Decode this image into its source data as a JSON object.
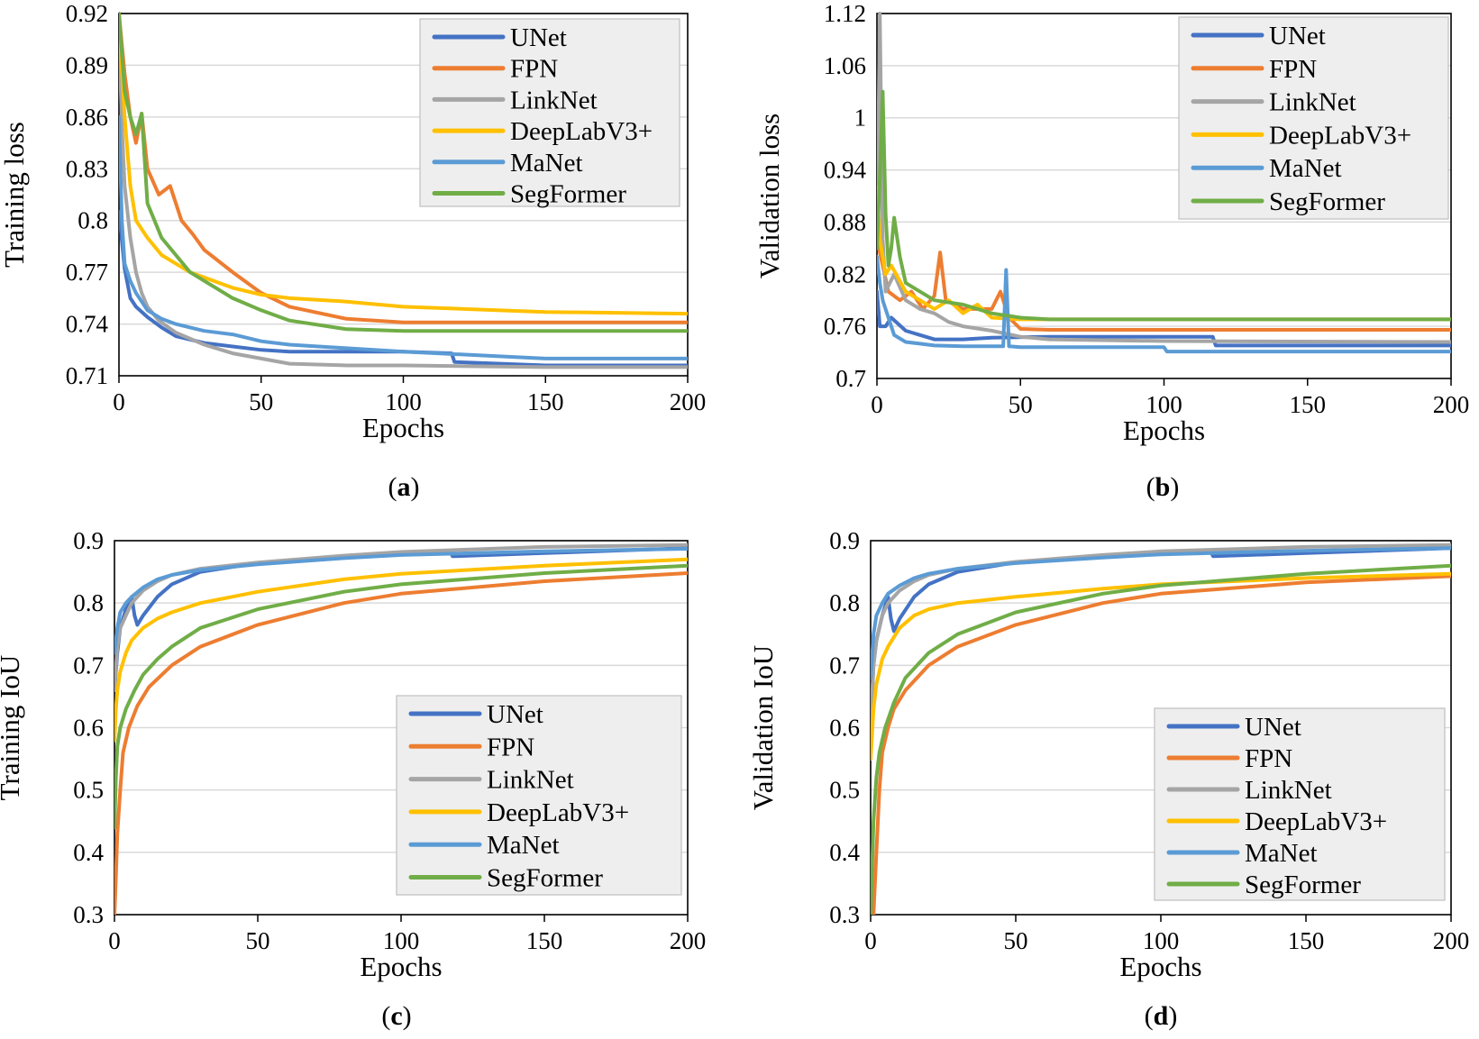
{
  "colors": {
    "UNet": "#4472C4",
    "FPN": "#ED7D31",
    "LinkNet": "#A5A5A5",
    "DeepLabV3+": "#FFC000",
    "MaNet": "#5B9BD5",
    "SegFormer": "#70AD47"
  },
  "chart_data": [
    {
      "id": "a",
      "type": "line",
      "caption": {
        "prefix": "(",
        "letter": "a",
        "suffix": ")"
      },
      "xlabel": "Epochs",
      "ylabel": "Training loss",
      "xlim": [
        0,
        200
      ],
      "ylim": [
        0.71,
        0.92
      ],
      "xticks": [
        "0",
        "50",
        "100",
        "150",
        "200"
      ],
      "yticks": [
        "0.71",
        "0.74",
        "0.77",
        "0.8",
        "0.83",
        "0.86",
        "0.89",
        "0.92"
      ],
      "legend": [
        "UNet",
        "FPN",
        "LinkNet",
        "DeepLabV3+",
        "MaNet",
        "SegFormer"
      ],
      "series": [
        {
          "name": "UNet",
          "x": [
            0,
            2,
            4,
            6,
            10,
            15,
            20,
            30,
            40,
            50,
            60,
            80,
            100,
            117,
            118,
            150,
            200
          ],
          "values": [
            0.805,
            0.772,
            0.755,
            0.75,
            0.744,
            0.738,
            0.733,
            0.729,
            0.727,
            0.725,
            0.724,
            0.724,
            0.724,
            0.723,
            0.718,
            0.716,
            0.716
          ]
        },
        {
          "name": "FPN",
          "x": [
            0,
            2,
            4,
            6,
            8,
            10,
            14,
            18,
            22,
            26,
            30,
            40,
            50,
            60,
            80,
            100,
            150,
            200
          ],
          "values": [
            0.92,
            0.885,
            0.86,
            0.845,
            0.862,
            0.83,
            0.815,
            0.82,
            0.8,
            0.792,
            0.783,
            0.77,
            0.758,
            0.75,
            0.743,
            0.741,
            0.741,
            0.741
          ]
        },
        {
          "name": "LinkNet",
          "x": [
            0,
            1,
            2,
            4,
            6,
            8,
            10,
            14,
            20,
            30,
            40,
            50,
            60,
            80,
            100,
            150,
            200
          ],
          "values": [
            0.91,
            0.855,
            0.82,
            0.79,
            0.77,
            0.758,
            0.75,
            0.742,
            0.735,
            0.728,
            0.723,
            0.72,
            0.717,
            0.716,
            0.716,
            0.715,
            0.715
          ]
        },
        {
          "name": "DeepLabV3+",
          "x": [
            0,
            2,
            4,
            6,
            8,
            10,
            15,
            20,
            25,
            30,
            40,
            50,
            60,
            80,
            100,
            150,
            200
          ],
          "values": [
            0.915,
            0.86,
            0.82,
            0.8,
            0.795,
            0.79,
            0.78,
            0.775,
            0.77,
            0.767,
            0.761,
            0.757,
            0.755,
            0.753,
            0.75,
            0.747,
            0.746
          ]
        },
        {
          "name": "MaNet",
          "x": [
            0,
            1,
            2,
            4,
            6,
            8,
            10,
            15,
            20,
            25,
            30,
            40,
            50,
            60,
            80,
            100,
            150,
            200
          ],
          "values": [
            0.86,
            0.8,
            0.775,
            0.765,
            0.758,
            0.753,
            0.748,
            0.743,
            0.74,
            0.738,
            0.736,
            0.734,
            0.73,
            0.728,
            0.726,
            0.724,
            0.72,
            0.72
          ]
        },
        {
          "name": "SegFormer",
          "x": [
            0,
            2,
            4,
            6,
            8,
            10,
            15,
            20,
            25,
            30,
            40,
            50,
            60,
            80,
            100,
            150,
            200
          ],
          "values": [
            0.92,
            0.875,
            0.86,
            0.85,
            0.862,
            0.81,
            0.79,
            0.78,
            0.77,
            0.765,
            0.755,
            0.748,
            0.742,
            0.737,
            0.736,
            0.736,
            0.736
          ]
        }
      ]
    },
    {
      "id": "b",
      "type": "line",
      "caption": {
        "prefix": "(",
        "letter": "b",
        "suffix": ")"
      },
      "xlabel": "Epochs",
      "ylabel": "Validation loss",
      "xlim": [
        0,
        200
      ],
      "ylim": [
        0.7,
        1.12
      ],
      "xticks": [
        "0",
        "50",
        "100",
        "150",
        "200"
      ],
      "yticks": [
        "0.7",
        "0.76",
        "0.82",
        "0.88",
        "0.94",
        "1",
        "1.06",
        "1.12"
      ],
      "legend": [
        "UNet",
        "FPN",
        "LinkNet",
        "DeepLabV3+",
        "MaNet",
        "SegFormer"
      ],
      "series": [
        {
          "name": "UNet",
          "x": [
            0,
            1,
            3,
            5,
            10,
            15,
            20,
            30,
            40,
            60,
            80,
            100,
            117,
            118,
            150,
            200
          ],
          "values": [
            0.8,
            0.76,
            0.76,
            0.77,
            0.755,
            0.75,
            0.745,
            0.745,
            0.747,
            0.748,
            0.748,
            0.748,
            0.748,
            0.738,
            0.738,
            0.738
          ]
        },
        {
          "name": "FPN",
          "x": [
            0,
            2,
            4,
            8,
            12,
            16,
            20,
            22,
            24,
            30,
            40,
            43,
            46,
            50,
            60,
            100,
            200
          ],
          "values": [
            0.86,
            0.83,
            0.8,
            0.79,
            0.8,
            0.78,
            0.795,
            0.845,
            0.79,
            0.78,
            0.78,
            0.8,
            0.77,
            0.757,
            0.756,
            0.756,
            0.756
          ]
        },
        {
          "name": "LinkNet",
          "x": [
            0,
            1,
            2,
            3,
            6,
            10,
            15,
            20,
            25,
            30,
            40,
            50,
            60,
            100,
            200
          ],
          "values": [
            0.85,
            1.12,
            0.86,
            0.8,
            0.82,
            0.79,
            0.78,
            0.775,
            0.765,
            0.76,
            0.755,
            0.748,
            0.745,
            0.743,
            0.742
          ]
        },
        {
          "name": "DeepLabV3+",
          "x": [
            0,
            1,
            3,
            5,
            10,
            15,
            20,
            25,
            30,
            35,
            40,
            50,
            60,
            70,
            100,
            200
          ],
          "values": [
            0.92,
            0.86,
            0.82,
            0.83,
            0.8,
            0.79,
            0.78,
            0.79,
            0.775,
            0.785,
            0.77,
            0.768,
            0.768,
            0.768,
            0.768,
            0.768
          ]
        },
        {
          "name": "MaNet",
          "x": [
            0,
            1,
            2,
            4,
            6,
            10,
            15,
            20,
            30,
            40,
            44,
            45,
            46,
            50,
            70,
            100,
            101,
            150,
            200
          ],
          "values": [
            0.84,
            0.81,
            0.79,
            0.77,
            0.75,
            0.742,
            0.74,
            0.738,
            0.737,
            0.737,
            0.737,
            0.825,
            0.737,
            0.736,
            0.736,
            0.736,
            0.731,
            0.731,
            0.731
          ]
        },
        {
          "name": "SegFormer",
          "x": [
            0,
            1,
            2,
            3,
            4,
            5,
            6,
            8,
            10,
            15,
            20,
            30,
            40,
            50,
            60,
            100,
            200
          ],
          "values": [
            0.85,
            0.93,
            1.03,
            0.89,
            0.83,
            0.85,
            0.885,
            0.84,
            0.81,
            0.8,
            0.79,
            0.785,
            0.775,
            0.77,
            0.768,
            0.768,
            0.768
          ]
        }
      ]
    },
    {
      "id": "c",
      "type": "line",
      "caption": {
        "prefix": "(",
        "letter": "c",
        "suffix": ")"
      },
      "xlabel": "Epochs",
      "ylabel": "Training IoU",
      "xlim": [
        0,
        200
      ],
      "ylim": [
        0.3,
        0.9
      ],
      "xticks": [
        "0",
        "50",
        "100",
        "150",
        "200"
      ],
      "yticks": [
        "0.3",
        "0.4",
        "0.5",
        "0.6",
        "0.7",
        "0.8",
        "0.9"
      ],
      "legend": [
        "UNet",
        "FPN",
        "LinkNet",
        "DeepLabV3+",
        "MaNet",
        "SegFormer"
      ],
      "series": [
        {
          "name": "UNet",
          "x": [
            0,
            1,
            2,
            4,
            6,
            7,
            8,
            10,
            15,
            20,
            30,
            50,
            80,
            100,
            117,
            118,
            150,
            200
          ],
          "values": [
            0.66,
            0.72,
            0.76,
            0.79,
            0.81,
            0.78,
            0.765,
            0.78,
            0.81,
            0.83,
            0.85,
            0.864,
            0.875,
            0.88,
            0.884,
            0.875,
            0.88,
            0.888
          ]
        },
        {
          "name": "FPN",
          "x": [
            0,
            0.5,
            1,
            2,
            3,
            5,
            8,
            12,
            20,
            30,
            50,
            80,
            100,
            150,
            200
          ],
          "values": [
            0.3,
            0.36,
            0.43,
            0.5,
            0.56,
            0.6,
            0.635,
            0.665,
            0.7,
            0.73,
            0.765,
            0.8,
            0.815,
            0.835,
            0.848
          ]
        },
        {
          "name": "LinkNet",
          "x": [
            0,
            1,
            2,
            4,
            6,
            8,
            10,
            15,
            20,
            30,
            50,
            80,
            100,
            150,
            200
          ],
          "values": [
            0.66,
            0.73,
            0.76,
            0.78,
            0.8,
            0.81,
            0.82,
            0.835,
            0.845,
            0.855,
            0.865,
            0.876,
            0.882,
            0.89,
            0.893
          ]
        },
        {
          "name": "DeepLabV3+",
          "x": [
            0,
            0.5,
            1,
            2,
            4,
            6,
            10,
            15,
            20,
            30,
            50,
            80,
            100,
            150,
            200
          ],
          "values": [
            0.58,
            0.63,
            0.66,
            0.69,
            0.72,
            0.74,
            0.76,
            0.775,
            0.785,
            0.8,
            0.818,
            0.838,
            0.847,
            0.86,
            0.87
          ]
        },
        {
          "name": "MaNet",
          "x": [
            0,
            1,
            2,
            4,
            6,
            10,
            15,
            20,
            30,
            50,
            80,
            100,
            150,
            200
          ],
          "values": [
            0.72,
            0.76,
            0.785,
            0.8,
            0.81,
            0.825,
            0.838,
            0.845,
            0.853,
            0.862,
            0.872,
            0.877,
            0.883,
            0.887
          ]
        },
        {
          "name": "SegFormer",
          "x": [
            0,
            0.5,
            1,
            2,
            4,
            7,
            10,
            15,
            20,
            30,
            50,
            80,
            100,
            150,
            200
          ],
          "values": [
            0.44,
            0.52,
            0.57,
            0.6,
            0.63,
            0.66,
            0.685,
            0.71,
            0.73,
            0.76,
            0.79,
            0.818,
            0.83,
            0.848,
            0.86
          ]
        }
      ]
    },
    {
      "id": "d",
      "type": "line",
      "caption": {
        "prefix": "(",
        "letter": "d",
        "suffix": ")"
      },
      "xlabel": "Epochs",
      "ylabel": "Validation IoU",
      "xlim": [
        0,
        200
      ],
      "ylim": [
        0.3,
        0.9
      ],
      "xticks": [
        "0",
        "50",
        "100",
        "150",
        "200"
      ],
      "yticks": [
        "0.3",
        "0.4",
        "0.5",
        "0.6",
        "0.7",
        "0.8",
        "0.9"
      ],
      "legend": [
        "UNet",
        "FPN",
        "LinkNet",
        "DeepLabV3+",
        "MaNet",
        "SegFormer"
      ],
      "series": [
        {
          "name": "UNet",
          "x": [
            0,
            1,
            2,
            4,
            6,
            7,
            8,
            10,
            15,
            20,
            30,
            50,
            80,
            100,
            117,
            118,
            150,
            200
          ],
          "values": [
            0.6,
            0.7,
            0.74,
            0.78,
            0.81,
            0.775,
            0.755,
            0.775,
            0.81,
            0.83,
            0.85,
            0.865,
            0.876,
            0.88,
            0.884,
            0.875,
            0.88,
            0.888
          ]
        },
        {
          "name": "FPN",
          "x": [
            0,
            1,
            2,
            3,
            4,
            6,
            8,
            12,
            20,
            30,
            50,
            80,
            100,
            150,
            200
          ],
          "values": [
            0.3,
            0.3,
            0.4,
            0.5,
            0.56,
            0.6,
            0.63,
            0.66,
            0.7,
            0.73,
            0.765,
            0.8,
            0.815,
            0.833,
            0.843
          ]
        },
        {
          "name": "LinkNet",
          "x": [
            0,
            1,
            2,
            4,
            6,
            8,
            10,
            15,
            20,
            30,
            50,
            80,
            100,
            150,
            200
          ],
          "values": [
            0.6,
            0.7,
            0.74,
            0.78,
            0.8,
            0.81,
            0.82,
            0.835,
            0.845,
            0.855,
            0.866,
            0.877,
            0.883,
            0.89,
            0.893
          ]
        },
        {
          "name": "DeepLabV3+",
          "x": [
            0,
            1,
            2,
            4,
            6,
            10,
            15,
            20,
            30,
            50,
            80,
            100,
            150,
            200
          ],
          "values": [
            0.55,
            0.63,
            0.67,
            0.71,
            0.73,
            0.76,
            0.78,
            0.79,
            0.8,
            0.81,
            0.823,
            0.83,
            0.84,
            0.847
          ]
        },
        {
          "name": "MaNet",
          "x": [
            0,
            1,
            2,
            4,
            6,
            10,
            15,
            20,
            30,
            50,
            80,
            100,
            150,
            200
          ],
          "values": [
            0.68,
            0.75,
            0.78,
            0.8,
            0.815,
            0.828,
            0.84,
            0.847,
            0.855,
            0.864,
            0.873,
            0.878,
            0.884,
            0.888
          ]
        },
        {
          "name": "SegFormer",
          "x": [
            0,
            1,
            2,
            3,
            5,
            8,
            12,
            20,
            30,
            50,
            80,
            100,
            150,
            200
          ],
          "values": [
            0.3,
            0.45,
            0.52,
            0.56,
            0.6,
            0.64,
            0.68,
            0.72,
            0.75,
            0.785,
            0.815,
            0.828,
            0.847,
            0.86
          ]
        }
      ]
    }
  ]
}
